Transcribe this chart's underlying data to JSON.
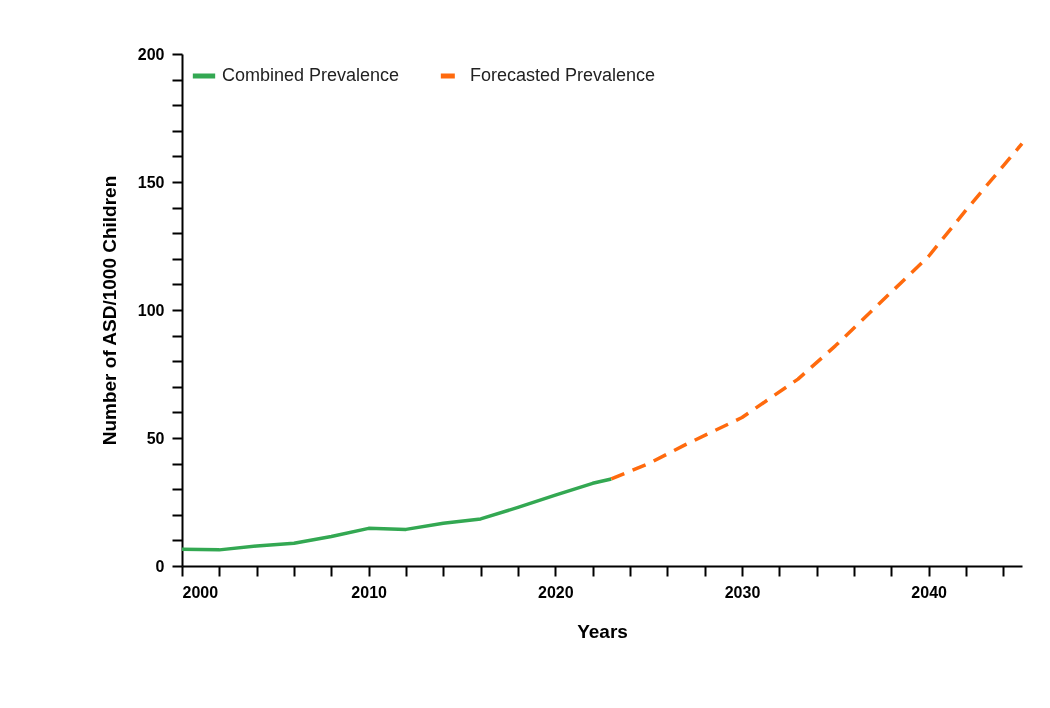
{
  "chart_data": {
    "type": "line",
    "xlabel": "Years",
    "ylabel": "Number of ASD/1000 Children",
    "xlim": [
      2000,
      2045
    ],
    "ylim": [
      0,
      200
    ],
    "xticks": [
      2000,
      {
        "value": 2002,
        "label": null
      },
      {
        "value": 2004,
        "label": null
      },
      {
        "value": 2006,
        "label": null
      },
      {
        "value": 2008,
        "label": null
      },
      2010,
      {
        "value": 2012,
        "label": null
      },
      {
        "value": 2014,
        "label": null
      },
      {
        "value": 2016,
        "label": null
      },
      {
        "value": 2018,
        "label": null
      },
      2020,
      {
        "value": 2022,
        "label": null
      },
      {
        "value": 2024,
        "label": null
      },
      {
        "value": 2026,
        "label": null
      },
      {
        "value": 2028,
        "label": null
      },
      2030,
      {
        "value": 2032,
        "label": null
      },
      {
        "value": 2034,
        "label": null
      },
      {
        "value": 2036,
        "label": null
      },
      {
        "value": 2038,
        "label": null
      },
      2040,
      {
        "value": 2042,
        "label": null
      },
      {
        "value": 2044,
        "label": null
      }
    ],
    "yticks": [
      0,
      {
        "value": 10,
        "label": null
      },
      {
        "value": 20,
        "label": null
      },
      {
        "value": 30,
        "label": null
      },
      {
        "value": 40,
        "label": null
      },
      50,
      {
        "value": 60,
        "label": null
      },
      {
        "value": 70,
        "label": null
      },
      {
        "value": 80,
        "label": null
      },
      {
        "value": 90,
        "label": null
      },
      100,
      {
        "value": 110,
        "label": null
      },
      {
        "value": 120,
        "label": null
      },
      {
        "value": 130,
        "label": null
      },
      {
        "value": 140,
        "label": null
      },
      150,
      {
        "value": 160,
        "label": null
      },
      {
        "value": 170,
        "label": null
      },
      {
        "value": 180,
        "label": null
      },
      {
        "value": 190,
        "label": null
      },
      200
    ],
    "grid": false,
    "legend": "top left",
    "marker": "none",
    "series": [
      {
        "name": "Combined Prevalence",
        "color": "#33a852",
        "line_style": "solid",
        "x": [
          2000,
          2002,
          2004,
          2006,
          2008,
          2010,
          2012,
          2014,
          2016,
          2018,
          2020,
          2022,
          2023
        ],
        "values": [
          6.5,
          6.3,
          7.8,
          8.9,
          11.5,
          14.7,
          14.3,
          16.7,
          18.4,
          22.9,
          27.7,
          32.3,
          34
        ]
      },
      {
        "name": "Forecasted Prevalence",
        "color": "#ff6a0d",
        "line_style": "dashed",
        "x": [
          2023,
          2025,
          2027,
          2030,
          2033,
          2035,
          2038,
          2040,
          2042,
          2045
        ],
        "values": [
          34,
          40,
          47.5,
          58,
          73,
          86,
          107,
          121,
          139,
          165
        ]
      }
    ]
  }
}
